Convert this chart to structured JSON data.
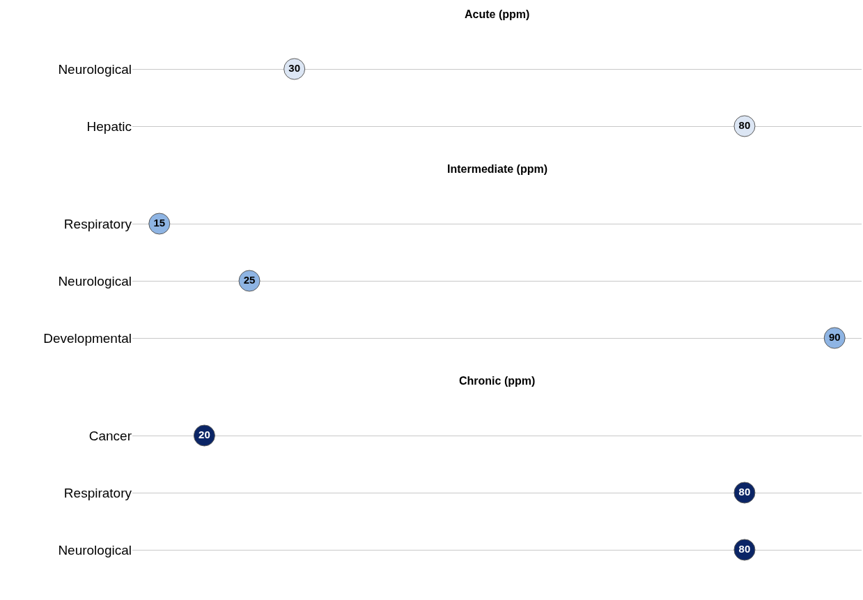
{
  "chart_data": [
    {
      "type": "scatter",
      "title": "Acute (ppm)",
      "orientation": "horizontal",
      "categories": [
        "Neurological",
        "Hepatic"
      ],
      "values": [
        30,
        80
      ],
      "color": "#dce6f4",
      "data_labels": true,
      "grid": "y",
      "marker": "circle"
    },
    {
      "type": "scatter",
      "title": "Intermediate (ppm)",
      "orientation": "horizontal",
      "categories": [
        "Respiratory",
        "Neurological",
        "Developmental"
      ],
      "values": [
        15,
        25,
        90
      ],
      "color": "#8eb4e3",
      "data_labels": true,
      "grid": "y",
      "marker": "circle"
    },
    {
      "type": "scatter",
      "title": "Chronic (ppm)",
      "orientation": "horizontal",
      "categories": [
        "Cancer",
        "Respiratory",
        "Neurological"
      ],
      "values": [
        20,
        80,
        80
      ],
      "color": "#0b2566",
      "data_labels": true,
      "grid": "y",
      "marker": "circle"
    }
  ]
}
